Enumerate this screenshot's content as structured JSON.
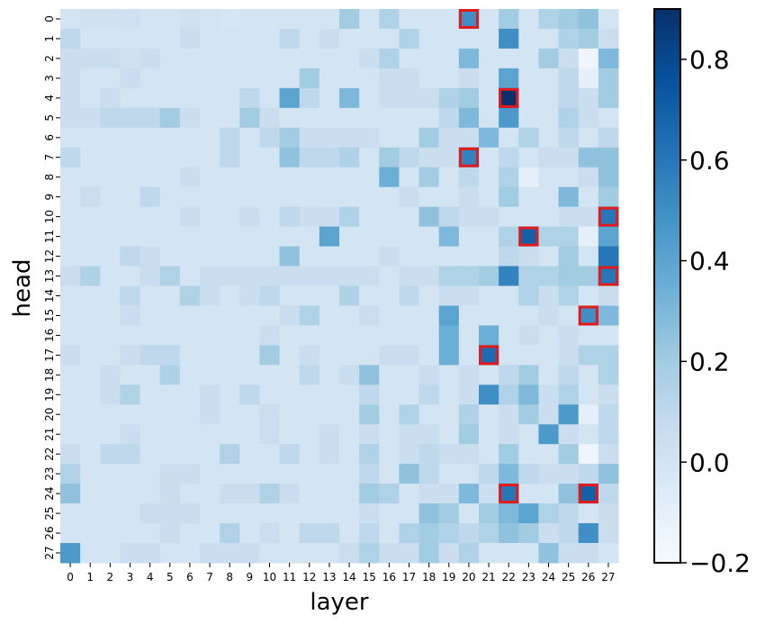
{
  "chart_data": {
    "type": "heatmap",
    "title": "",
    "xlabel": "layer",
    "ylabel": "head",
    "x_ticks": [
      "0",
      "1",
      "2",
      "3",
      "4",
      "5",
      "6",
      "7",
      "8",
      "9",
      "10",
      "11",
      "12",
      "13",
      "14",
      "15",
      "16",
      "17",
      "18",
      "19",
      "20",
      "21",
      "22",
      "23",
      "24",
      "25",
      "26",
      "27"
    ],
    "y_ticks": [
      "0",
      "1",
      "2",
      "3",
      "4",
      "5",
      "6",
      "7",
      "8",
      "9",
      "10",
      "11",
      "12",
      "13",
      "14",
      "15",
      "16",
      "17",
      "18",
      "19",
      "20",
      "21",
      "22",
      "23",
      "24",
      "25",
      "26",
      "27"
    ],
    "colormap": "Blues",
    "vmin": -0.2,
    "vmax": 0.9,
    "colorbar_ticks": [
      "0.8",
      "0.6",
      "0.4",
      "0.2",
      "0.0",
      "−0.2"
    ],
    "colorbar_tick_values": [
      0.8,
      0.6,
      0.4,
      0.2,
      0.0,
      -0.2
    ],
    "highlight_color": "#e31a1c",
    "highlighted_cells": [
      {
        "layer": 20,
        "head": 0
      },
      {
        "layer": 22,
        "head": 4
      },
      {
        "layer": 20,
        "head": 7
      },
      {
        "layer": 27,
        "head": 10
      },
      {
        "layer": 23,
        "head": 11
      },
      {
        "layer": 27,
        "head": 13
      },
      {
        "layer": 26,
        "head": 15
      },
      {
        "layer": 21,
        "head": 17
      },
      {
        "layer": 22,
        "head": 24
      },
      {
        "layer": 26,
        "head": 24
      }
    ],
    "values": [
      [
        0.0,
        0.02,
        0.02,
        0.03,
        0.0,
        0.0,
        0.02,
        0.0,
        -0.02,
        0.0,
        0.0,
        0.0,
        0.0,
        0.0,
        0.2,
        0.0,
        0.15,
        0.0,
        0.0,
        0.0,
        0.5,
        0.0,
        0.2,
        0.0,
        0.15,
        0.2,
        0.25,
        0.0
      ],
      [
        0.1,
        0.0,
        0.0,
        0.0,
        0.0,
        0.0,
        0.05,
        0.0,
        0.0,
        0.0,
        0.0,
        0.1,
        0.0,
        0.05,
        0.0,
        0.0,
        0.0,
        0.15,
        0.0,
        0.0,
        0.0,
        0.0,
        0.5,
        0.0,
        0.0,
        0.15,
        0.2,
        0.05
      ],
      [
        0.05,
        0.05,
        0.05,
        0.02,
        0.05,
        0.0,
        0.0,
        0.0,
        0.0,
        0.0,
        0.0,
        0.0,
        0.0,
        0.0,
        0.0,
        0.05,
        0.15,
        0.0,
        0.0,
        0.0,
        0.3,
        0.0,
        0.0,
        0.0,
        0.2,
        0.05,
        -0.15,
        0.3
      ],
      [
        0.05,
        0.0,
        0.0,
        0.05,
        0.0,
        0.0,
        0.0,
        0.0,
        0.0,
        0.0,
        0.0,
        0.0,
        0.2,
        0.0,
        0.0,
        0.0,
        0.05,
        0.05,
        0.0,
        0.0,
        0.05,
        0.0,
        0.4,
        0.0,
        0.0,
        0.1,
        -0.1,
        0.2
      ],
      [
        0.05,
        0.0,
        0.05,
        0.0,
        0.0,
        0.0,
        0.0,
        0.0,
        0.0,
        0.1,
        0.0,
        0.4,
        0.1,
        0.0,
        0.3,
        0.0,
        0.05,
        0.05,
        0.05,
        0.15,
        0.2,
        0.0,
        0.9,
        0.0,
        0.0,
        0.1,
        0.05,
        0.2
      ],
      [
        0.05,
        0.05,
        0.1,
        0.1,
        0.1,
        0.2,
        0.05,
        0.0,
        0.0,
        0.2,
        0.05,
        0.0,
        0.0,
        0.0,
        0.0,
        0.0,
        0.0,
        0.0,
        0.0,
        0.1,
        0.3,
        0.0,
        0.45,
        0.0,
        0.0,
        0.15,
        0.05,
        0.0
      ],
      [
        0.0,
        0.0,
        0.0,
        0.0,
        0.0,
        0.0,
        0.0,
        0.0,
        0.1,
        0.0,
        0.1,
        0.2,
        0.05,
        0.05,
        0.05,
        0.05,
        0.0,
        0.0,
        0.2,
        0.05,
        0.05,
        0.3,
        0.0,
        0.15,
        0.0,
        0.1,
        0.0,
        0.1
      ],
      [
        0.1,
        0.0,
        0.0,
        0.0,
        0.0,
        0.0,
        0.0,
        0.0,
        0.1,
        0.0,
        0.0,
        0.25,
        0.1,
        0.1,
        0.15,
        0.0,
        0.2,
        0.1,
        0.05,
        0.05,
        0.55,
        0.0,
        0.1,
        0.0,
        0.05,
        0.05,
        0.25,
        0.25
      ],
      [
        0.0,
        0.0,
        0.0,
        0.0,
        0.0,
        0.0,
        0.05,
        0.0,
        0.0,
        0.0,
        0.0,
        0.0,
        0.0,
        0.0,
        0.0,
        0.0,
        0.35,
        0.0,
        0.2,
        0.0,
        0.1,
        0.0,
        0.15,
        -0.1,
        0.0,
        0.0,
        0.05,
        0.25
      ],
      [
        0.0,
        0.05,
        0.0,
        0.0,
        0.1,
        0.0,
        0.0,
        0.0,
        0.0,
        0.0,
        0.0,
        0.0,
        0.0,
        0.0,
        0.0,
        0.0,
        0.0,
        0.05,
        0.0,
        0.0,
        0.05,
        0.0,
        0.2,
        0.0,
        0.0,
        0.3,
        0.0,
        0.2
      ],
      [
        0.0,
        0.0,
        0.0,
        0.0,
        0.0,
        0.0,
        0.05,
        0.0,
        0.0,
        0.05,
        0.0,
        0.1,
        0.05,
        0.05,
        0.15,
        0.0,
        0.0,
        0.0,
        0.25,
        0.1,
        0.05,
        0.05,
        0.0,
        0.0,
        0.0,
        0.05,
        0.05,
        0.6
      ],
      [
        0.0,
        0.0,
        0.0,
        0.0,
        0.0,
        0.0,
        0.0,
        0.0,
        0.0,
        0.0,
        0.0,
        0.0,
        0.0,
        0.4,
        0.0,
        0.0,
        0.0,
        0.0,
        0.0,
        0.3,
        0.0,
        0.0,
        0.15,
        0.7,
        0.15,
        0.15,
        -0.1,
        0.4
      ],
      [
        0.0,
        0.0,
        0.0,
        0.1,
        0.05,
        0.0,
        0.0,
        0.0,
        0.0,
        0.0,
        0.0,
        0.25,
        0.0,
        0.0,
        0.0,
        0.0,
        0.05,
        0.0,
        0.0,
        0.0,
        0.0,
        0.0,
        0.1,
        0.05,
        0.0,
        0.2,
        0.0,
        0.6
      ],
      [
        0.05,
        0.15,
        0.0,
        0.0,
        0.05,
        0.15,
        0.0,
        0.05,
        0.05,
        0.05,
        0.05,
        0.05,
        0.05,
        0.05,
        0.05,
        0.05,
        0.0,
        0.05,
        0.05,
        0.15,
        0.15,
        0.2,
        0.55,
        0.15,
        0.15,
        0.2,
        0.2,
        0.6
      ],
      [
        0.0,
        0.0,
        0.0,
        0.1,
        0.0,
        0.0,
        0.15,
        0.05,
        0.0,
        0.05,
        0.1,
        0.0,
        0.0,
        0.0,
        0.15,
        0.0,
        0.0,
        0.1,
        0.0,
        0.05,
        0.05,
        0.0,
        0.0,
        0.15,
        0.05,
        0.15,
        0.0,
        0.05
      ],
      [
        0.0,
        0.0,
        0.0,
        0.05,
        0.0,
        0.0,
        0.0,
        0.0,
        0.0,
        0.0,
        0.0,
        0.05,
        0.15,
        0.0,
        0.0,
        0.05,
        0.0,
        0.0,
        0.0,
        0.4,
        0.0,
        0.0,
        0.0,
        0.0,
        0.05,
        0.0,
        0.5,
        0.3
      ],
      [
        0.0,
        0.0,
        0.0,
        0.0,
        0.0,
        0.0,
        0.0,
        0.0,
        0.0,
        0.0,
        0.05,
        0.0,
        0.0,
        0.0,
        0.0,
        0.0,
        0.0,
        0.0,
        0.0,
        0.35,
        0.0,
        0.35,
        0.0,
        0.05,
        0.0,
        0.05,
        0.0,
        0.0
      ],
      [
        0.05,
        0.0,
        0.0,
        0.05,
        0.1,
        0.1,
        0.0,
        0.0,
        0.0,
        0.0,
        0.2,
        0.0,
        0.05,
        0.0,
        0.0,
        0.0,
        0.05,
        0.05,
        0.0,
        0.35,
        0.0,
        0.65,
        0.0,
        0.0,
        0.0,
        0.05,
        0.15,
        0.15
      ],
      [
        0.0,
        0.0,
        0.05,
        0.0,
        0.0,
        0.15,
        0.0,
        0.0,
        0.0,
        0.0,
        0.0,
        0.0,
        0.1,
        0.0,
        0.05,
        0.25,
        0.0,
        0.0,
        0.05,
        0.0,
        0.05,
        0.0,
        0.1,
        0.2,
        0.0,
        0.1,
        0.0,
        0.15
      ],
      [
        0.0,
        0.0,
        0.05,
        0.15,
        0.0,
        0.0,
        0.0,
        0.05,
        0.0,
        0.1,
        0.0,
        0.0,
        0.0,
        0.0,
        0.0,
        0.1,
        0.0,
        0.0,
        0.1,
        0.0,
        0.05,
        0.5,
        0.15,
        0.3,
        0.05,
        0.15,
        0.0,
        0.05
      ],
      [
        0.0,
        0.0,
        0.0,
        0.0,
        0.0,
        0.0,
        0.0,
        0.05,
        0.0,
        0.0,
        0.05,
        0.0,
        0.0,
        0.0,
        0.0,
        0.2,
        0.0,
        0.15,
        0.0,
        0.0,
        0.15,
        0.0,
        0.05,
        0.2,
        0.05,
        0.45,
        -0.1,
        0.1
      ],
      [
        0.0,
        0.0,
        0.0,
        0.05,
        0.0,
        0.0,
        0.0,
        0.0,
        0.0,
        0.0,
        0.05,
        0.0,
        0.0,
        0.05,
        0.0,
        0.05,
        0.0,
        0.05,
        0.05,
        0.0,
        0.2,
        0.0,
        0.05,
        0.0,
        0.45,
        0.05,
        0.0,
        0.1
      ],
      [
        0.05,
        0.0,
        0.1,
        0.1,
        0.0,
        0.0,
        0.0,
        0.0,
        0.15,
        0.0,
        0.0,
        0.1,
        0.0,
        0.05,
        0.0,
        0.15,
        0.0,
        0.05,
        0.1,
        0.05,
        0.05,
        0.0,
        0.2,
        0.0,
        0.0,
        0.2,
        -0.15,
        0.05
      ],
      [
        0.15,
        0.0,
        0.0,
        0.0,
        0.0,
        0.05,
        0.05,
        0.0,
        0.0,
        0.0,
        0.0,
        0.0,
        0.0,
        0.0,
        0.0,
        0.1,
        0.0,
        0.25,
        0.1,
        0.0,
        0.0,
        0.1,
        0.3,
        0.1,
        0.05,
        0.05,
        0.1,
        0.25
      ],
      [
        0.25,
        0.0,
        0.0,
        0.0,
        0.0,
        0.05,
        0.0,
        0.0,
        0.05,
        0.05,
        0.15,
        0.05,
        0.0,
        0.0,
        0.0,
        0.2,
        0.15,
        0.0,
        0.05,
        0.05,
        0.3,
        0.05,
        0.6,
        0.0,
        0.0,
        0.25,
        0.7,
        0.1
      ],
      [
        0.0,
        0.0,
        0.0,
        0.0,
        0.05,
        0.05,
        0.05,
        0.0,
        0.0,
        0.0,
        0.0,
        0.0,
        0.0,
        0.0,
        0.0,
        0.05,
        0.0,
        0.0,
        0.25,
        0.2,
        0.0,
        0.2,
        0.3,
        0.4,
        0.15,
        0.1,
        0.0,
        0.05
      ],
      [
        0.0,
        0.0,
        0.0,
        0.0,
        0.0,
        0.05,
        0.0,
        0.0,
        0.15,
        0.0,
        0.05,
        0.0,
        0.1,
        0.1,
        0.0,
        0.1,
        0.0,
        0.15,
        0.2,
        0.15,
        0.1,
        0.15,
        0.25,
        0.2,
        0.05,
        0.1,
        0.5,
        0.05
      ],
      [
        0.45,
        0.0,
        0.0,
        0.05,
        0.05,
        0.0,
        0.0,
        0.05,
        0.05,
        0.05,
        0.0,
        0.0,
        0.0,
        0.0,
        0.05,
        0.15,
        0.05,
        0.05,
        0.2,
        0.05,
        0.15,
        0.0,
        0.0,
        0.0,
        0.25,
        0.05,
        0.05,
        0.0
      ]
    ]
  }
}
